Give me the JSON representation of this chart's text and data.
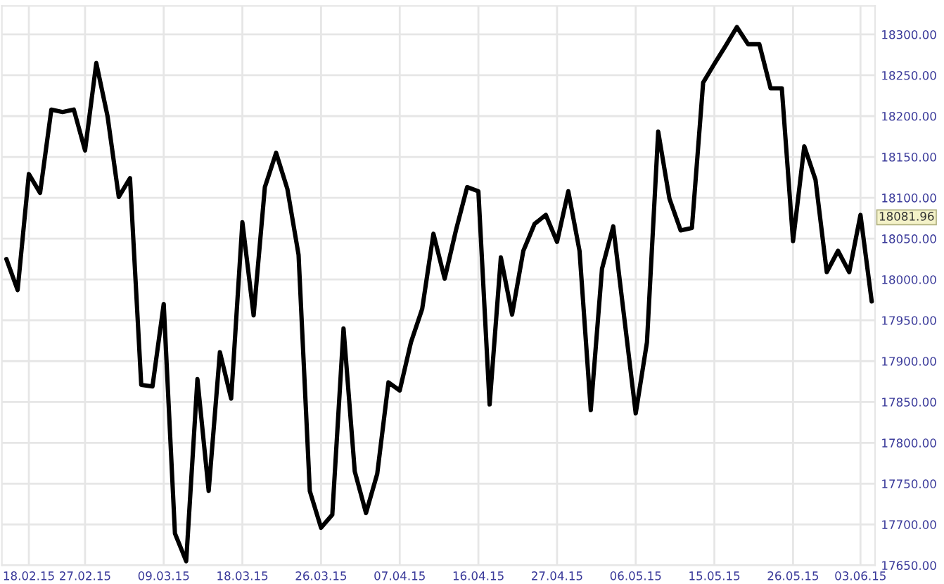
{
  "chart_data": {
    "type": "line",
    "categories": [
      null,
      null,
      "18.02.15",
      null,
      null,
      null,
      null,
      "27.02.15",
      null,
      null,
      null,
      null,
      null,
      null,
      "09.03.15",
      null,
      null,
      null,
      null,
      null,
      null,
      "18.03.15",
      null,
      null,
      null,
      null,
      null,
      null,
      "26.03.15",
      null,
      null,
      null,
      null,
      null,
      null,
      "07.04.15",
      null,
      null,
      null,
      null,
      null,
      null,
      "16.04.15",
      null,
      null,
      null,
      null,
      null,
      null,
      "27.04.15",
      null,
      null,
      null,
      null,
      null,
      null,
      "06.05.15",
      null,
      null,
      null,
      null,
      null,
      null,
      "15.05.15",
      null,
      null,
      null,
      null,
      null,
      null,
      "26.05.15",
      null,
      null,
      null,
      null,
      null,
      "03.06.15",
      null
    ],
    "series": [
      {
        "color": "#000000",
        "values": [
          18025,
          17987,
          18129,
          18106,
          18208,
          18205,
          18208,
          18158,
          18265,
          18200,
          18101,
          18124,
          17871,
          17869,
          17970,
          17689,
          17655,
          17878,
          17741,
          17911,
          17854,
          18070,
          17956,
          18113,
          18155,
          18111,
          18030,
          17741,
          17696,
          17712,
          17940,
          17765,
          17714,
          17762,
          17874,
          17864,
          17923,
          17964,
          18056,
          18001,
          18060,
          18113,
          18108,
          17847,
          18027,
          17957,
          18035,
          18068,
          18079,
          18046,
          18108,
          18035,
          17840,
          18013,
          18065,
          17951,
          17836,
          17923,
          18181,
          18099,
          18060,
          18063,
          18241,
          18264,
          18286,
          18309,
          18288,
          18288,
          18234,
          18234,
          18047,
          18163,
          18122,
          18009,
          18035,
          18009,
          18079,
          17973
        ]
      }
    ],
    "ylim": [
      17650,
      18335
    ],
    "yticks": [
      {
        "value": 17650,
        "label": "17650.00"
      },
      {
        "value": 17700,
        "label": "17700.00"
      },
      {
        "value": 17750,
        "label": "17750.00"
      },
      {
        "value": 17800,
        "label": "17800.00"
      },
      {
        "value": 17850,
        "label": "17850.00"
      },
      {
        "value": 17900,
        "label": "17900.00"
      },
      {
        "value": 17950,
        "label": "17950.00"
      },
      {
        "value": 18000,
        "label": "18000.00"
      },
      {
        "value": 18050,
        "label": "18050.00"
      },
      {
        "value": 18100,
        "label": "18100.00"
      },
      {
        "value": 18150,
        "label": "18150.00"
      },
      {
        "value": 18200,
        "label": "18200.00"
      },
      {
        "value": 18250,
        "label": "18250.00"
      },
      {
        "value": 18300,
        "label": "18300.00"
      }
    ],
    "annotations": [
      "18081.96"
    ],
    "grid": true,
    "line_style": "solid",
    "marker": "none"
  }
}
